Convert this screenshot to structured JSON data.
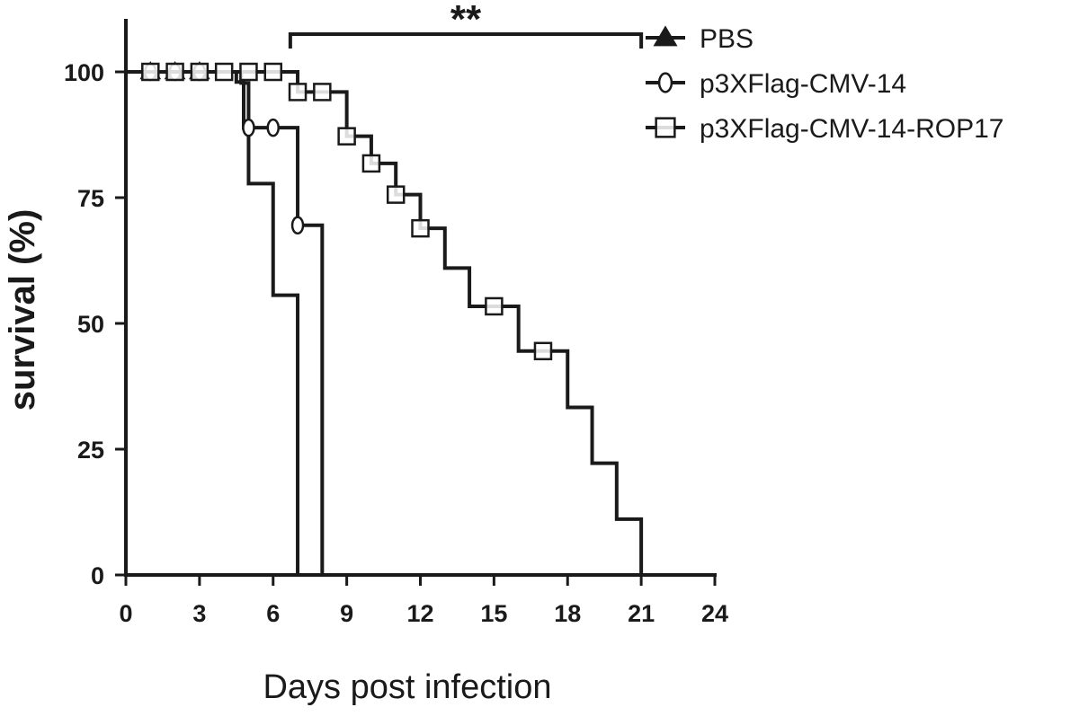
{
  "chart_data": {
    "type": "line",
    "title": "",
    "xlabel": "Days post infection",
    "ylabel": "survival (%)",
    "xlim": [
      0,
      24
    ],
    "ylim": [
      0,
      100
    ],
    "x_ticks": [
      0,
      3,
      6,
      9,
      12,
      15,
      18,
      21,
      24
    ],
    "y_ticks": [
      0,
      25,
      50,
      75,
      100
    ],
    "grid": false,
    "legend_position": "top-right",
    "series": [
      {
        "name": "PBS",
        "marker": "triangle",
        "steps": [
          [
            0,
            100
          ],
          [
            4.7,
            97.8
          ],
          [
            5,
            77.8
          ],
          [
            6,
            55.6
          ],
          [
            7,
            0
          ]
        ],
        "markers": [
          [
            1,
            100
          ],
          [
            2,
            100
          ],
          [
            3,
            100
          ]
        ]
      },
      {
        "name": "p3XFlag-CMV-14",
        "marker": "circle",
        "steps": [
          [
            0,
            100
          ],
          [
            4.5,
            98
          ],
          [
            4.8,
            88.9
          ],
          [
            7,
            69.5
          ],
          [
            8,
            0
          ]
        ],
        "markers": [
          [
            1,
            100
          ],
          [
            2,
            100
          ],
          [
            3,
            100
          ],
          [
            5,
            88.9
          ],
          [
            6,
            88.9
          ],
          [
            7,
            69.5
          ]
        ]
      },
      {
        "name": "p3XFlag-CMV-14-ROP17",
        "marker": "square",
        "steps": [
          [
            0,
            100
          ],
          [
            7,
            96
          ],
          [
            9,
            87.2
          ],
          [
            10,
            81.8
          ],
          [
            11,
            75.6
          ],
          [
            12,
            68.9
          ],
          [
            13,
            61
          ],
          [
            14,
            53.4
          ],
          [
            16,
            44.5
          ],
          [
            18,
            33.3
          ],
          [
            19,
            22.2
          ],
          [
            20,
            11.1
          ],
          [
            21,
            0
          ]
        ],
        "markers": [
          [
            1,
            100
          ],
          [
            2,
            100
          ],
          [
            3,
            100
          ],
          [
            4,
            100
          ],
          [
            5,
            100
          ],
          [
            6,
            100
          ],
          [
            7,
            96
          ],
          [
            8,
            96
          ],
          [
            9,
            87.2
          ],
          [
            10,
            81.8
          ],
          [
            11,
            75.6
          ],
          [
            12,
            68.9
          ],
          [
            15,
            53.4
          ],
          [
            17,
            44.5
          ]
        ]
      }
    ],
    "annotations": [
      {
        "text": "**",
        "x_start": 6.7,
        "x_end": 21
      }
    ]
  }
}
